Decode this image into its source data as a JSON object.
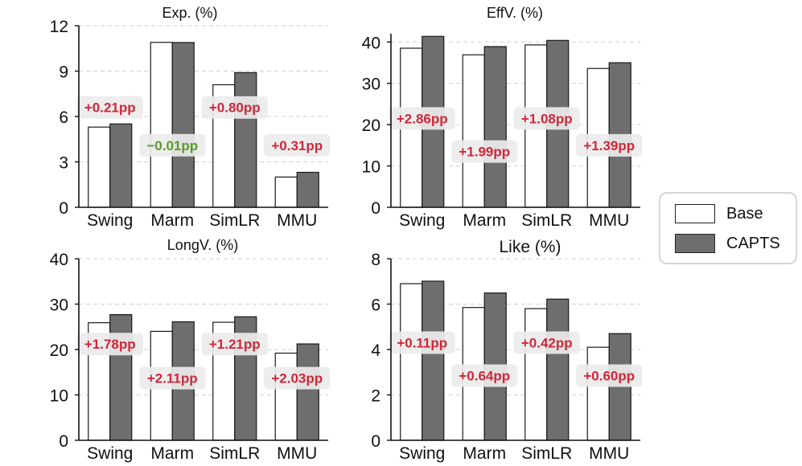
{
  "chart_data": [
    {
      "type": "bar",
      "title": "Exp. (%)",
      "categories": [
        "Swing",
        "Marm",
        "SimLR",
        "MMU"
      ],
      "series": [
        {
          "name": "Base",
          "values": [
            5.3,
            10.9,
            8.1,
            2.0
          ]
        },
        {
          "name": "CAPTS",
          "values": [
            5.51,
            10.89,
            8.9,
            2.31
          ]
        }
      ],
      "ylim": [
        0,
        12
      ],
      "yticks": [
        0,
        3,
        6,
        9,
        12
      ],
      "annotations": [
        "+0.21pp",
        "−0.01pp",
        "+0.80pp",
        "+0.31pp"
      ],
      "annotation_colors": [
        "#d0283a",
        "#5a9a2a",
        "#d0283a",
        "#d0283a"
      ],
      "annotation_values": [
        6.6,
        4.1,
        6.6,
        4.1
      ],
      "grid": true
    },
    {
      "type": "bar",
      "title": "EffV. (%)",
      "categories": [
        "Swing",
        "Marm",
        "SimLR",
        "MMU"
      ],
      "series": [
        {
          "name": "Base",
          "values": [
            38.5,
            36.9,
            39.3,
            33.6
          ]
        },
        {
          "name": "CAPTS",
          "values": [
            41.36,
            38.89,
            40.38,
            34.99
          ]
        }
      ],
      "ylim": [
        0,
        42
      ],
      "yticks": [
        0,
        10,
        20,
        30,
        40
      ],
      "annotations": [
        "+2.86pp",
        "+1.99pp",
        "+1.08pp",
        "+1.39pp"
      ],
      "annotation_colors": [
        "#d0283a",
        "#d0283a",
        "#d0283a",
        "#d0283a"
      ],
      "annotation_values": [
        21.5,
        13.5,
        21.5,
        15.0
      ],
      "grid": true
    },
    {
      "type": "bar",
      "title": "LongV. (%)",
      "categories": [
        "Swing",
        "Marm",
        "SimLR",
        "MMU"
      ],
      "series": [
        {
          "name": "Base",
          "values": [
            25.9,
            24.0,
            26.0,
            19.2
          ]
        },
        {
          "name": "CAPTS",
          "values": [
            27.68,
            26.11,
            27.21,
            21.23
          ]
        }
      ],
      "ylim": [
        0,
        40
      ],
      "yticks": [
        0,
        10,
        20,
        30,
        40
      ],
      "annotations": [
        "+1.78pp",
        "+2.11pp",
        "+1.21pp",
        "+2.03pp"
      ],
      "annotation_colors": [
        "#d0283a",
        "#d0283a",
        "#d0283a",
        "#d0283a"
      ],
      "annotation_values": [
        21.2,
        13.7,
        21.2,
        13.7
      ],
      "grid": true
    },
    {
      "type": "bar",
      "title": "Like (%)",
      "categories": [
        "Swing",
        "Marm",
        "SimLR",
        "MMU"
      ],
      "series": [
        {
          "name": "Base",
          "values": [
            6.9,
            5.85,
            5.8,
            4.1
          ]
        },
        {
          "name": "CAPTS",
          "values": [
            7.01,
            6.49,
            6.22,
            4.7
          ]
        }
      ],
      "ylim": [
        0,
        8
      ],
      "yticks": [
        0,
        2,
        4,
        6,
        8
      ],
      "annotations": [
        "+0.11pp",
        "+0.64pp",
        "+0.42pp",
        "+0.60pp"
      ],
      "annotation_colors": [
        "#d0283a",
        "#d0283a",
        "#d0283a",
        "#d0283a"
      ],
      "annotation_values": [
        4.3,
        2.85,
        4.3,
        2.85
      ],
      "grid": true
    }
  ],
  "legend": {
    "placement": "right",
    "items": [
      {
        "label": "Base",
        "fill": "#ffffff"
      },
      {
        "label": "CAPTS",
        "fill": "#6e6e6e"
      }
    ]
  },
  "colors": {
    "base_fill": "#ffffff",
    "capts_fill": "#6e6e6e",
    "increase": "#d0283a",
    "decrease": "#5a9a2a",
    "grid": "#cfcfcf",
    "annotation_bg": "#ececec"
  }
}
